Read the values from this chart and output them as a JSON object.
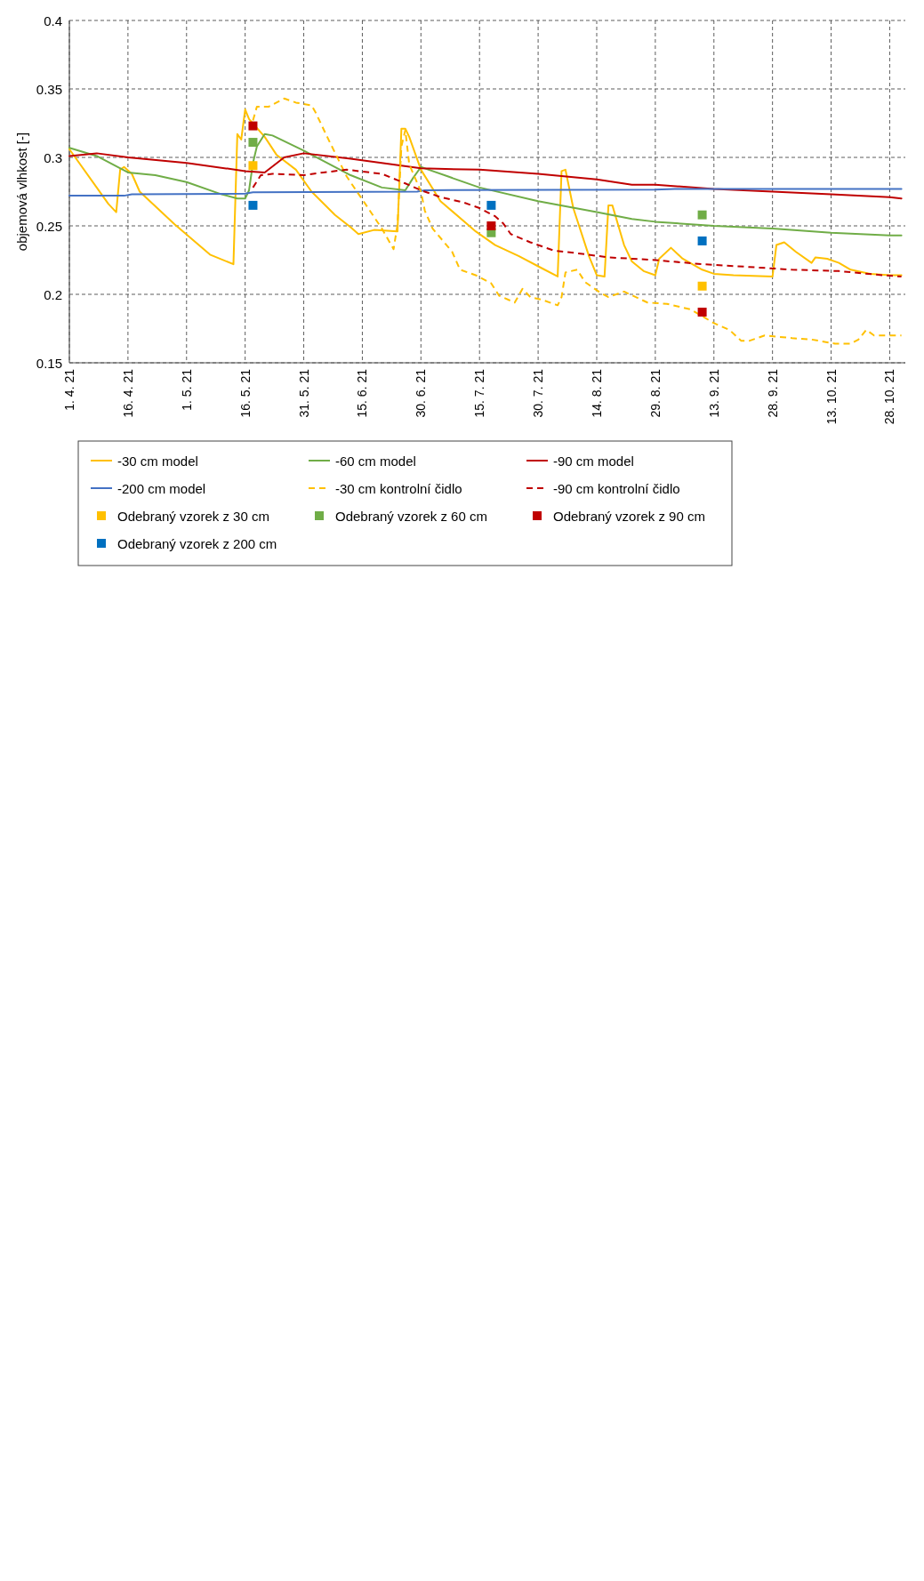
{
  "chart_data": {
    "type": "line",
    "ylabel": "objemová vlhkost [-]",
    "grid": true,
    "legend": "bottom",
    "xlim": [
      "--04-01",
      "--11-01"
    ],
    "xticks": [
      {
        "value": "--04-01",
        "label": "1. 4. 21"
      },
      {
        "value": "--04-16",
        "label": "16. 4. 21"
      },
      {
        "value": "--05-01",
        "label": "1. 5. 21"
      },
      {
        "value": "--05-16",
        "label": "16. 5. 21"
      },
      {
        "value": "--05-31",
        "label": "31. 5. 21"
      },
      {
        "value": "--06-15",
        "label": "15. 6. 21"
      },
      {
        "value": "--06-30",
        "label": "30. 6. 21"
      },
      {
        "value": "--07-15",
        "label": "15. 7. 21"
      },
      {
        "value": "--07-30",
        "label": "30. 7. 21"
      },
      {
        "value": "--08-14",
        "label": "14. 8. 21"
      },
      {
        "value": "--08-29",
        "label": "29. 8. 21"
      },
      {
        "value": "--09-13",
        "label": "13. 9. 21"
      },
      {
        "value": "--09-28",
        "label": "28. 9. 21"
      },
      {
        "value": "--10-13",
        "label": "13. 10. 21"
      },
      {
        "value": "--10-28",
        "label": "28. 10. 21"
      }
    ],
    "ylim": [
      0.15,
      0.4
    ],
    "yticks": [
      0.15,
      0.2,
      0.25,
      0.3,
      0.35,
      0.4
    ],
    "series": [
      {
        "name": "-30 cm model",
        "color": "#ffc000",
        "line_style": "solid",
        "x": [
          "--04-01",
          "--04-08",
          "--04-11",
          "--04-13",
          "--04-14",
          "--04-15",
          "--04-17",
          "--04-19",
          "--04-28",
          "--05-07",
          "--05-13",
          "--05-14",
          "--05-15",
          "--05-16",
          "--05-17",
          "--05-21",
          "--05-24",
          "--05-29",
          "--06-02",
          "--06-08",
          "--06-12",
          "--06-14",
          "--06-18",
          "--06-24",
          "--06-25",
          "--06-26",
          "--06-27",
          "--06-30",
          "--07-05",
          "--07-14",
          "--07-19",
          "--07-25",
          "--07-31",
          "--08-04",
          "--08-05",
          "--08-06",
          "--08-08",
          "--08-12",
          "--08-14",
          "--08-16",
          "--08-17",
          "--08-18",
          "--08-21",
          "--08-23",
          "--08-26",
          "--08-29",
          "--08-30",
          "--09-02",
          "--09-05",
          "--09-10",
          "--09-13",
          "--09-18",
          "--09-28",
          "--09-29",
          "--10-01",
          "--10-04",
          "--10-08",
          "--10-09",
          "--10-12",
          "--10-15",
          "--10-18",
          "--10-23",
          "--10-28",
          "--10-31"
        ],
        "values": [
          0.306,
          0.278,
          0.266,
          0.26,
          0.291,
          0.293,
          0.288,
          0.275,
          0.251,
          0.229,
          0.222,
          0.317,
          0.313,
          0.335,
          0.328,
          0.315,
          0.302,
          0.291,
          0.275,
          0.258,
          0.249,
          0.244,
          0.247,
          0.246,
          0.321,
          0.321,
          0.315,
          0.291,
          0.268,
          0.246,
          0.236,
          0.228,
          0.219,
          0.213,
          0.29,
          0.291,
          0.263,
          0.228,
          0.214,
          0.213,
          0.265,
          0.265,
          0.236,
          0.224,
          0.217,
          0.214,
          0.226,
          0.234,
          0.226,
          0.218,
          0.215,
          0.214,
          0.213,
          0.236,
          0.238,
          0.231,
          0.223,
          0.227,
          0.226,
          0.223,
          0.218,
          0.215,
          0.214,
          0.214
        ]
      },
      {
        "name": "-60 cm model",
        "color": "#70ad47",
        "line_style": "solid",
        "x": [
          "--04-01",
          "--04-08",
          "--04-16",
          "--04-23",
          "--05-01",
          "--05-10",
          "--05-14",
          "--05-16",
          "--05-17",
          "--05-18",
          "--05-19",
          "--05-21",
          "--05-23",
          "--05-31",
          "--06-08",
          "--06-12",
          "--06-20",
          "--06-26",
          "--06-28",
          "--06-30",
          "--07-02",
          "--07-07",
          "--07-15",
          "--07-30",
          "--08-14",
          "--08-23",
          "--08-29",
          "--09-13",
          "--09-28",
          "--10-13",
          "--10-28",
          "--10-31"
        ],
        "values": [
          0.307,
          0.301,
          0.289,
          0.287,
          0.282,
          0.273,
          0.27,
          0.27,
          0.276,
          0.296,
          0.308,
          0.317,
          0.316,
          0.305,
          0.293,
          0.287,
          0.278,
          0.276,
          0.285,
          0.293,
          0.291,
          0.286,
          0.278,
          0.268,
          0.26,
          0.255,
          0.253,
          0.25,
          0.248,
          0.245,
          0.243,
          0.243
        ]
      },
      {
        "name": "-90 cm model",
        "color": "#c00000",
        "line_style": "solid",
        "x": [
          "--04-01",
          "--04-08",
          "--04-16",
          "--05-01",
          "--05-16",
          "--05-21",
          "--05-26",
          "--05-31",
          "--06-12",
          "--06-30",
          "--07-15",
          "--07-30",
          "--08-14",
          "--08-23",
          "--08-29",
          "--09-13",
          "--09-28",
          "--10-13",
          "--10-28",
          "--10-31"
        ],
        "values": [
          0.301,
          0.303,
          0.3,
          0.296,
          0.29,
          0.289,
          0.3,
          0.303,
          0.299,
          0.292,
          0.291,
          0.288,
          0.284,
          0.28,
          0.28,
          0.277,
          0.275,
          0.273,
          0.271,
          0.27
        ]
      },
      {
        "name": "-200 cm model",
        "color": "#4472c4",
        "line_style": "solid",
        "x": [
          "--04-01",
          "--04-15",
          "--04-17",
          "--05-16",
          "--05-18",
          "--06-29",
          "--07-01",
          "--08-29",
          "--09-03",
          "--10-31"
        ],
        "values": [
          0.272,
          0.272,
          0.273,
          0.2735,
          0.2745,
          0.275,
          0.276,
          0.2765,
          0.277,
          0.277
        ]
      },
      {
        "name": "-30 cm kontrolní čidlo",
        "color": "#ffc000",
        "line_style": "dashed",
        "x": [
          "--05-18",
          "--05-19",
          "--05-22",
          "--05-26",
          "--05-29",
          "--06-02",
          "--06-03",
          "--06-06",
          "--06-11",
          "--06-16",
          "--06-20",
          "--06-23",
          "--06-24",
          "--06-25",
          "--06-26",
          "--06-27",
          "--06-30",
          "--07-01",
          "--07-03",
          "--07-08",
          "--07-10",
          "--07-14",
          "--07-18",
          "--07-20",
          "--07-24",
          "--07-26",
          "--07-28",
          "--07-31",
          "--08-04",
          "--08-05",
          "--08-06",
          "--08-09",
          "--08-11",
          "--08-15",
          "--08-17",
          "--08-21",
          "--08-27",
          "--09-01",
          "--09-07",
          "--09-13",
          "--09-17",
          "--09-20",
          "--09-22",
          "--09-26",
          "--10-03",
          "--10-08",
          "--10-12",
          "--10-14",
          "--10-18",
          "--10-20",
          "--10-22",
          "--10-24",
          "--10-28",
          "--10-31"
        ],
        "values": [
          0.327,
          0.337,
          0.337,
          0.343,
          0.34,
          0.338,
          0.333,
          0.315,
          0.286,
          0.265,
          0.248,
          0.233,
          0.251,
          0.308,
          0.32,
          0.295,
          0.275,
          0.261,
          0.248,
          0.231,
          0.218,
          0.214,
          0.208,
          0.199,
          0.194,
          0.204,
          0.198,
          0.196,
          0.192,
          0.198,
          0.216,
          0.218,
          0.209,
          0.201,
          0.198,
          0.202,
          0.194,
          0.193,
          0.189,
          0.179,
          0.174,
          0.166,
          0.166,
          0.17,
          0.168,
          0.167,
          0.165,
          0.164,
          0.164,
          0.167,
          0.174,
          0.17,
          0.17,
          0.17
        ]
      },
      {
        "name": "-90 cm kontrolní čidlo",
        "color": "#c00000",
        "line_style": "dashed",
        "x": [
          "--05-18",
          "--05-20",
          "--05-23",
          "--05-31",
          "--06-05",
          "--06-11",
          "--06-20",
          "--06-26",
          "--06-30",
          "--07-05",
          "--07-11",
          "--07-15",
          "--07-19",
          "--07-21",
          "--07-23",
          "--07-28",
          "--08-03",
          "--08-09",
          "--08-17",
          "--08-23",
          "--08-29",
          "--09-10",
          "--09-22",
          "--10-03",
          "--10-15",
          "--10-26",
          "--10-31"
        ],
        "values": [
          0.278,
          0.287,
          0.288,
          0.287,
          0.289,
          0.291,
          0.288,
          0.281,
          0.276,
          0.271,
          0.267,
          0.263,
          0.257,
          0.252,
          0.244,
          0.238,
          0.232,
          0.23,
          0.227,
          0.226,
          0.225,
          0.222,
          0.22,
          0.218,
          0.217,
          0.214,
          0.213
        ]
      },
      {
        "name": "Odebraný vzorek z 30 cm",
        "type": "scatter",
        "marker": "square",
        "color": "#ffc000",
        "x": [
          "--05-18",
          "--07-18",
          "--09-10"
        ],
        "values": [
          0.294,
          null,
          0.206
        ]
      },
      {
        "name": "Odebraný vzorek z 60 cm",
        "type": "scatter",
        "marker": "square",
        "color": "#70ad47",
        "x": [
          "--05-18",
          "--07-18",
          "--09-10"
        ],
        "values": [
          0.311,
          0.245,
          0.258
        ]
      },
      {
        "name": "Odebraný vzorek z 90 cm",
        "type": "scatter",
        "marker": "square",
        "color": "#c00000",
        "x": [
          "--05-18",
          "--07-18",
          "--09-10"
        ],
        "values": [
          0.323,
          0.25,
          0.187
        ]
      },
      {
        "name": "Odebraný vzorek z 200 cm",
        "type": "scatter",
        "marker": "square",
        "color": "#0070c0",
        "x": [
          "--05-18",
          "--07-18",
          "--09-10"
        ],
        "values": [
          0.265,
          0.265,
          0.239
        ]
      }
    ]
  }
}
